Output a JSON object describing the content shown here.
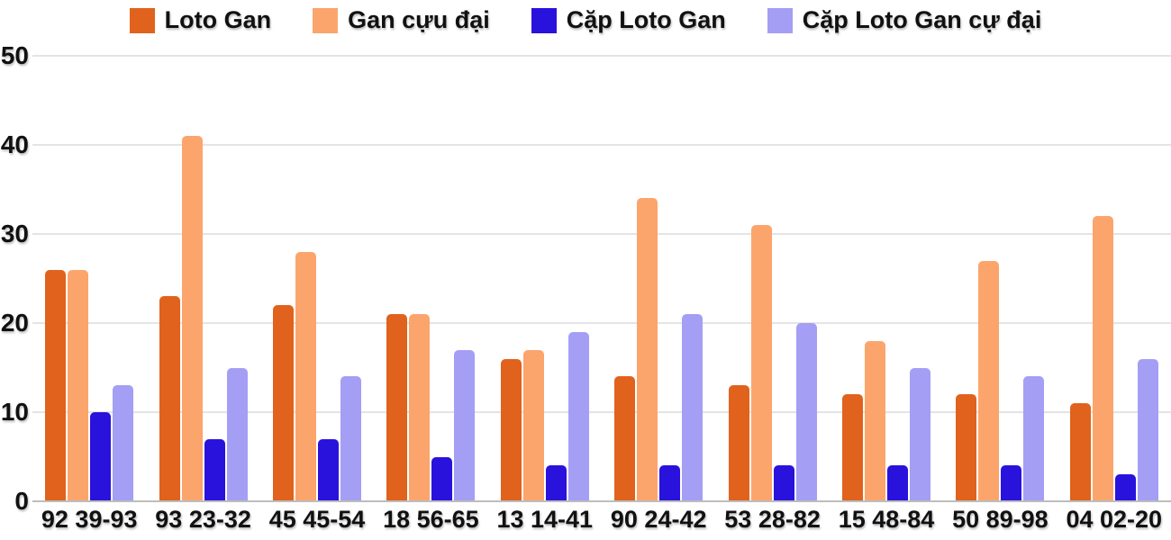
{
  "chart_data": {
    "type": "bar",
    "title": "",
    "xlabel": "",
    "ylabel": "",
    "categories": [
      "92 39-93",
      "93 23-32",
      "45 45-54",
      "18 56-65",
      "13 14-41",
      "90 24-42",
      "53 28-82",
      "15 48-84",
      "50 89-98",
      "04 02-20"
    ],
    "series": [
      {
        "name": "Loto Gan",
        "color": "#e0621c",
        "values": [
          26,
          23,
          22,
          21,
          16,
          14,
          13,
          12,
          12,
          11
        ]
      },
      {
        "name": "Gan cựu đại",
        "color": "#fba56c",
        "values": [
          26,
          41,
          28,
          21,
          17,
          34,
          31,
          18,
          27,
          32
        ]
      },
      {
        "name": "Cặp Loto Gan",
        "color": "#2a12dd",
        "values": [
          10,
          7,
          7,
          5,
          4,
          4,
          4,
          4,
          4,
          3
        ]
      },
      {
        "name": "Cặp Loto Gan cự đại",
        "color": "#a49ef5",
        "values": [
          13,
          15,
          14,
          17,
          19,
          21,
          20,
          15,
          14,
          16
        ]
      }
    ],
    "ylim": [
      0,
      50
    ],
    "yticks": [
      0,
      10,
      20,
      30,
      40,
      50
    ],
    "grid": true,
    "legend_position": "top",
    "text_color": "#111111",
    "gridline_color": "#e4e4e4",
    "baseline_color": "#bdbdbd",
    "background_color": "#ffffff"
  }
}
